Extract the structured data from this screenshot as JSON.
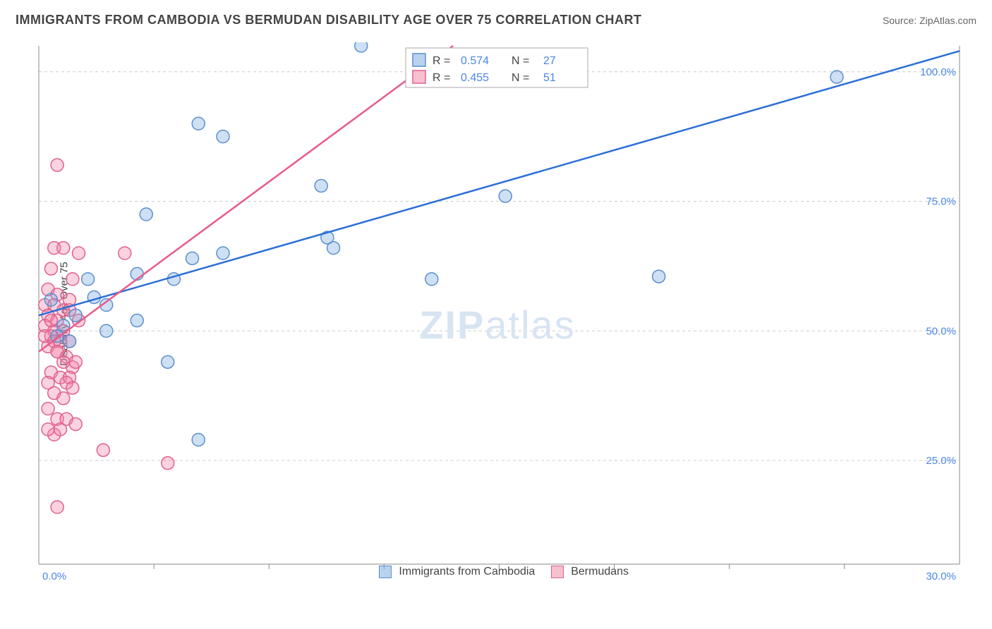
{
  "header": {
    "title": "IMMIGRANTS FROM CAMBODIA VS BERMUDAN DISABILITY AGE OVER 75 CORRELATION CHART",
    "source": "Source: ZipAtlas.com"
  },
  "chart": {
    "type": "scatter",
    "y_axis_label": "Disability Age Over 75",
    "xlim": [
      0,
      30
    ],
    "ylim": [
      5,
      105
    ],
    "x_ticks": [
      0,
      30
    ],
    "x_tick_labels": [
      "0.0%",
      "30.0%"
    ],
    "y_ticks": [
      25,
      50,
      75,
      100
    ],
    "y_tick_labels": [
      "25.0%",
      "50.0%",
      "75.0%",
      "100.0%"
    ],
    "x_minor_ticks": [
      3.75,
      7.5,
      11.25,
      15,
      18.75,
      22.5,
      26.25
    ],
    "background_color": "#ffffff",
    "grid_color": "#cccccc",
    "axis_color": "#888888",
    "tick_label_color": "#4a86e8",
    "marker_radius": 9,
    "watermark": "ZIPatlas",
    "series": [
      {
        "name": "Immigrants from Cambodia",
        "color_fill": "rgba(116,166,220,0.35)",
        "color_stroke": "#5b8fd0",
        "trend_color": "#2c6fd8",
        "R": "0.574",
        "N": "27",
        "trend": {
          "x1": 0,
          "y1": 53,
          "x2": 30,
          "y2": 104
        },
        "points": [
          [
            10.5,
            105
          ],
          [
            26.0,
            99
          ],
          [
            5.2,
            90
          ],
          [
            6.0,
            87.5
          ],
          [
            9.2,
            78
          ],
          [
            15.2,
            76
          ],
          [
            3.5,
            72.5
          ],
          [
            6.0,
            65
          ],
          [
            5.0,
            64
          ],
          [
            9.4,
            68
          ],
          [
            9.6,
            66
          ],
          [
            12.8,
            60
          ],
          [
            20.2,
            60.5
          ],
          [
            1.8,
            56.5
          ],
          [
            3.2,
            61
          ],
          [
            4.4,
            60
          ],
          [
            1.6,
            60
          ],
          [
            2.2,
            55
          ],
          [
            2.2,
            50
          ],
          [
            3.2,
            52
          ],
          [
            4.2,
            44
          ],
          [
            0.8,
            51
          ],
          [
            0.4,
            56
          ],
          [
            1.0,
            48
          ],
          [
            0.6,
            49
          ],
          [
            1.2,
            53
          ],
          [
            5.2,
            29
          ]
        ]
      },
      {
        "name": "Bermudans",
        "color_fill": "rgba(240,130,160,0.35)",
        "color_stroke": "#e06090",
        "trend_color": "#e85a8a",
        "R": "0.455",
        "N": "51",
        "trend": {
          "x1": 0,
          "y1": 46,
          "x2": 13.5,
          "y2": 105
        },
        "points": [
          [
            0.6,
            82
          ],
          [
            0.5,
            66
          ],
          [
            0.8,
            66
          ],
          [
            1.3,
            65
          ],
          [
            2.8,
            65
          ],
          [
            0.4,
            62
          ],
          [
            1.1,
            60
          ],
          [
            0.3,
            58
          ],
          [
            0.6,
            57
          ],
          [
            1.0,
            56
          ],
          [
            0.2,
            55
          ],
          [
            0.5,
            55
          ],
          [
            0.8,
            54
          ],
          [
            0.3,
            53
          ],
          [
            0.6,
            52
          ],
          [
            1.0,
            54
          ],
          [
            1.3,
            52
          ],
          [
            0.2,
            51
          ],
          [
            0.5,
            50
          ],
          [
            0.8,
            50
          ],
          [
            0.4,
            49
          ],
          [
            0.7,
            48
          ],
          [
            1.0,
            48
          ],
          [
            0.3,
            47
          ],
          [
            0.6,
            46
          ],
          [
            0.9,
            45
          ],
          [
            0.2,
            49
          ],
          [
            0.5,
            48
          ],
          [
            0.8,
            44
          ],
          [
            1.1,
            43
          ],
          [
            0.4,
            42
          ],
          [
            0.7,
            41
          ],
          [
            1.0,
            41
          ],
          [
            0.3,
            40
          ],
          [
            0.6,
            46
          ],
          [
            0.9,
            40
          ],
          [
            1.2,
            44
          ],
          [
            0.5,
            38
          ],
          [
            0.8,
            37
          ],
          [
            1.1,
            39
          ],
          [
            0.3,
            35
          ],
          [
            0.6,
            33
          ],
          [
            0.9,
            33
          ],
          [
            1.2,
            32
          ],
          [
            0.5,
            30
          ],
          [
            0.3,
            31
          ],
          [
            0.7,
            31
          ],
          [
            2.1,
            27
          ],
          [
            4.2,
            24.5
          ],
          [
            0.6,
            16
          ],
          [
            0.4,
            52
          ]
        ]
      }
    ]
  },
  "legend_top": {
    "row1": {
      "R_label": "R =",
      "R_val": "0.574",
      "N_label": "N =",
      "N_val": "27"
    },
    "row2": {
      "R_label": "R =",
      "R_val": "0.455",
      "N_label": "N =",
      "N_val": "51"
    }
  },
  "legend_bottom": {
    "item1": "Immigrants from Cambodia",
    "item2": "Bermudans"
  }
}
